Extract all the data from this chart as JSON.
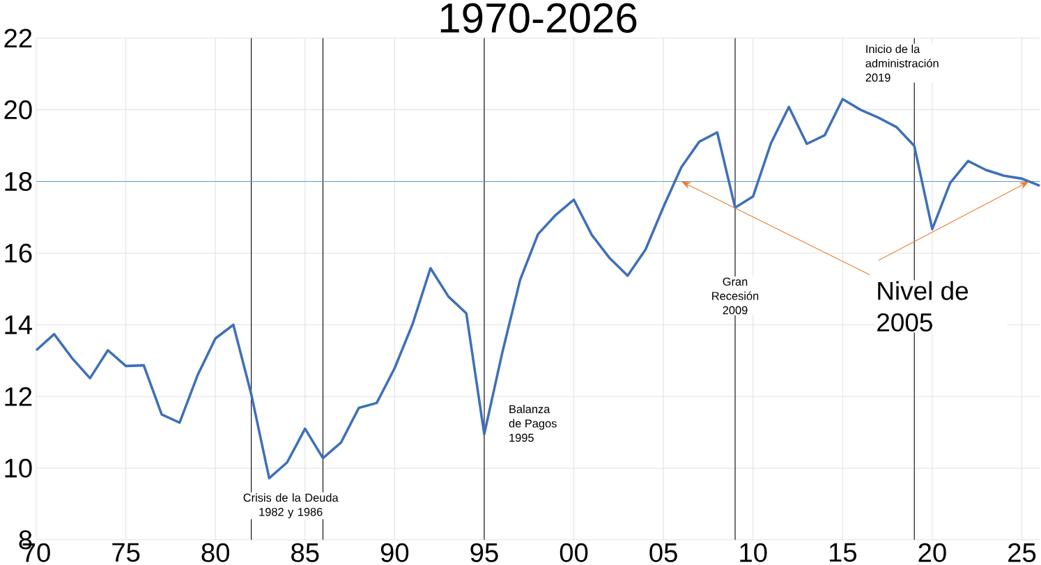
{
  "chart_data": {
    "type": "line",
    "title": "1970-2026",
    "x": [
      1970,
      1971,
      1972,
      1973,
      1974,
      1975,
      1976,
      1977,
      1978,
      1979,
      1980,
      1981,
      1982,
      1983,
      1984,
      1985,
      1986,
      1987,
      1988,
      1989,
      1990,
      1991,
      1992,
      1993,
      1994,
      1995,
      1996,
      1997,
      1998,
      1999,
      2000,
      2001,
      2002,
      2003,
      2004,
      2005,
      2006,
      2007,
      2008,
      2009,
      2010,
      2011,
      2012,
      2013,
      2014,
      2015,
      2016,
      2017,
      2018,
      2019,
      2020,
      2021,
      2022,
      2023,
      2024,
      2025,
      2026
    ],
    "series": [
      {
        "color": "#3f6fb9",
        "values": [
          13.29,
          13.74,
          13.07,
          12.51,
          13.29,
          12.85,
          12.87,
          11.5,
          11.27,
          12.59,
          13.62,
          14.0,
          12.06,
          9.72,
          10.16,
          11.1,
          10.28,
          10.71,
          11.68,
          11.82,
          12.79,
          14.02,
          15.58,
          14.79,
          14.32,
          10.95,
          13.21,
          15.25,
          16.53,
          17.07,
          17.49,
          16.51,
          15.86,
          15.37,
          16.1,
          17.29,
          18.4,
          19.11,
          19.37,
          17.27,
          17.58,
          19.07,
          20.08,
          19.05,
          19.29,
          20.3,
          20.0,
          19.78,
          19.52,
          18.99,
          16.67,
          17.96,
          18.57,
          18.32,
          18.16,
          18.08,
          17.88
        ]
      }
    ],
    "xlim": [
      1970,
      2026
    ],
    "xticks": [
      {
        "value": 1970,
        "label": "70"
      },
      {
        "value": 1975,
        "label": "75"
      },
      {
        "value": 1980,
        "label": "80"
      },
      {
        "value": 1985,
        "label": "85"
      },
      {
        "value": 1990,
        "label": "90"
      },
      {
        "value": 1995,
        "label": "95"
      },
      {
        "value": 2000,
        "label": "00"
      },
      {
        "value": 2005,
        "label": "05"
      },
      {
        "value": 2010,
        "label": "10"
      },
      {
        "value": 2015,
        "label": "15"
      },
      {
        "value": 2020,
        "label": "20"
      },
      {
        "value": 2025,
        "label": "25"
      }
    ],
    "ylim": [
      8,
      22
    ],
    "yticks": [
      8,
      10,
      12,
      14,
      16,
      18,
      20,
      22
    ],
    "grid": true,
    "ref_lines": [
      {
        "axis": "x",
        "value": 1982,
        "color": "#000000"
      },
      {
        "axis": "x",
        "value": 1986,
        "color": "#000000"
      },
      {
        "axis": "x",
        "value": 1995,
        "color": "#000000"
      },
      {
        "axis": "x",
        "value": 2009,
        "color": "#000000"
      },
      {
        "axis": "x",
        "value": 2019,
        "color": "#000000"
      },
      {
        "axis": "y",
        "value": 18,
        "color": "#5b9bd5"
      }
    ],
    "annotations": [
      "Crisis de la Deuda 1982 y 1986",
      "Balanza de Pagos 1995",
      "Gran Recesión 2009",
      "Inicio de la administración 2019",
      {
        "text": "Nivel de 2005",
        "x": 2006,
        "y": 18
      }
    ]
  }
}
